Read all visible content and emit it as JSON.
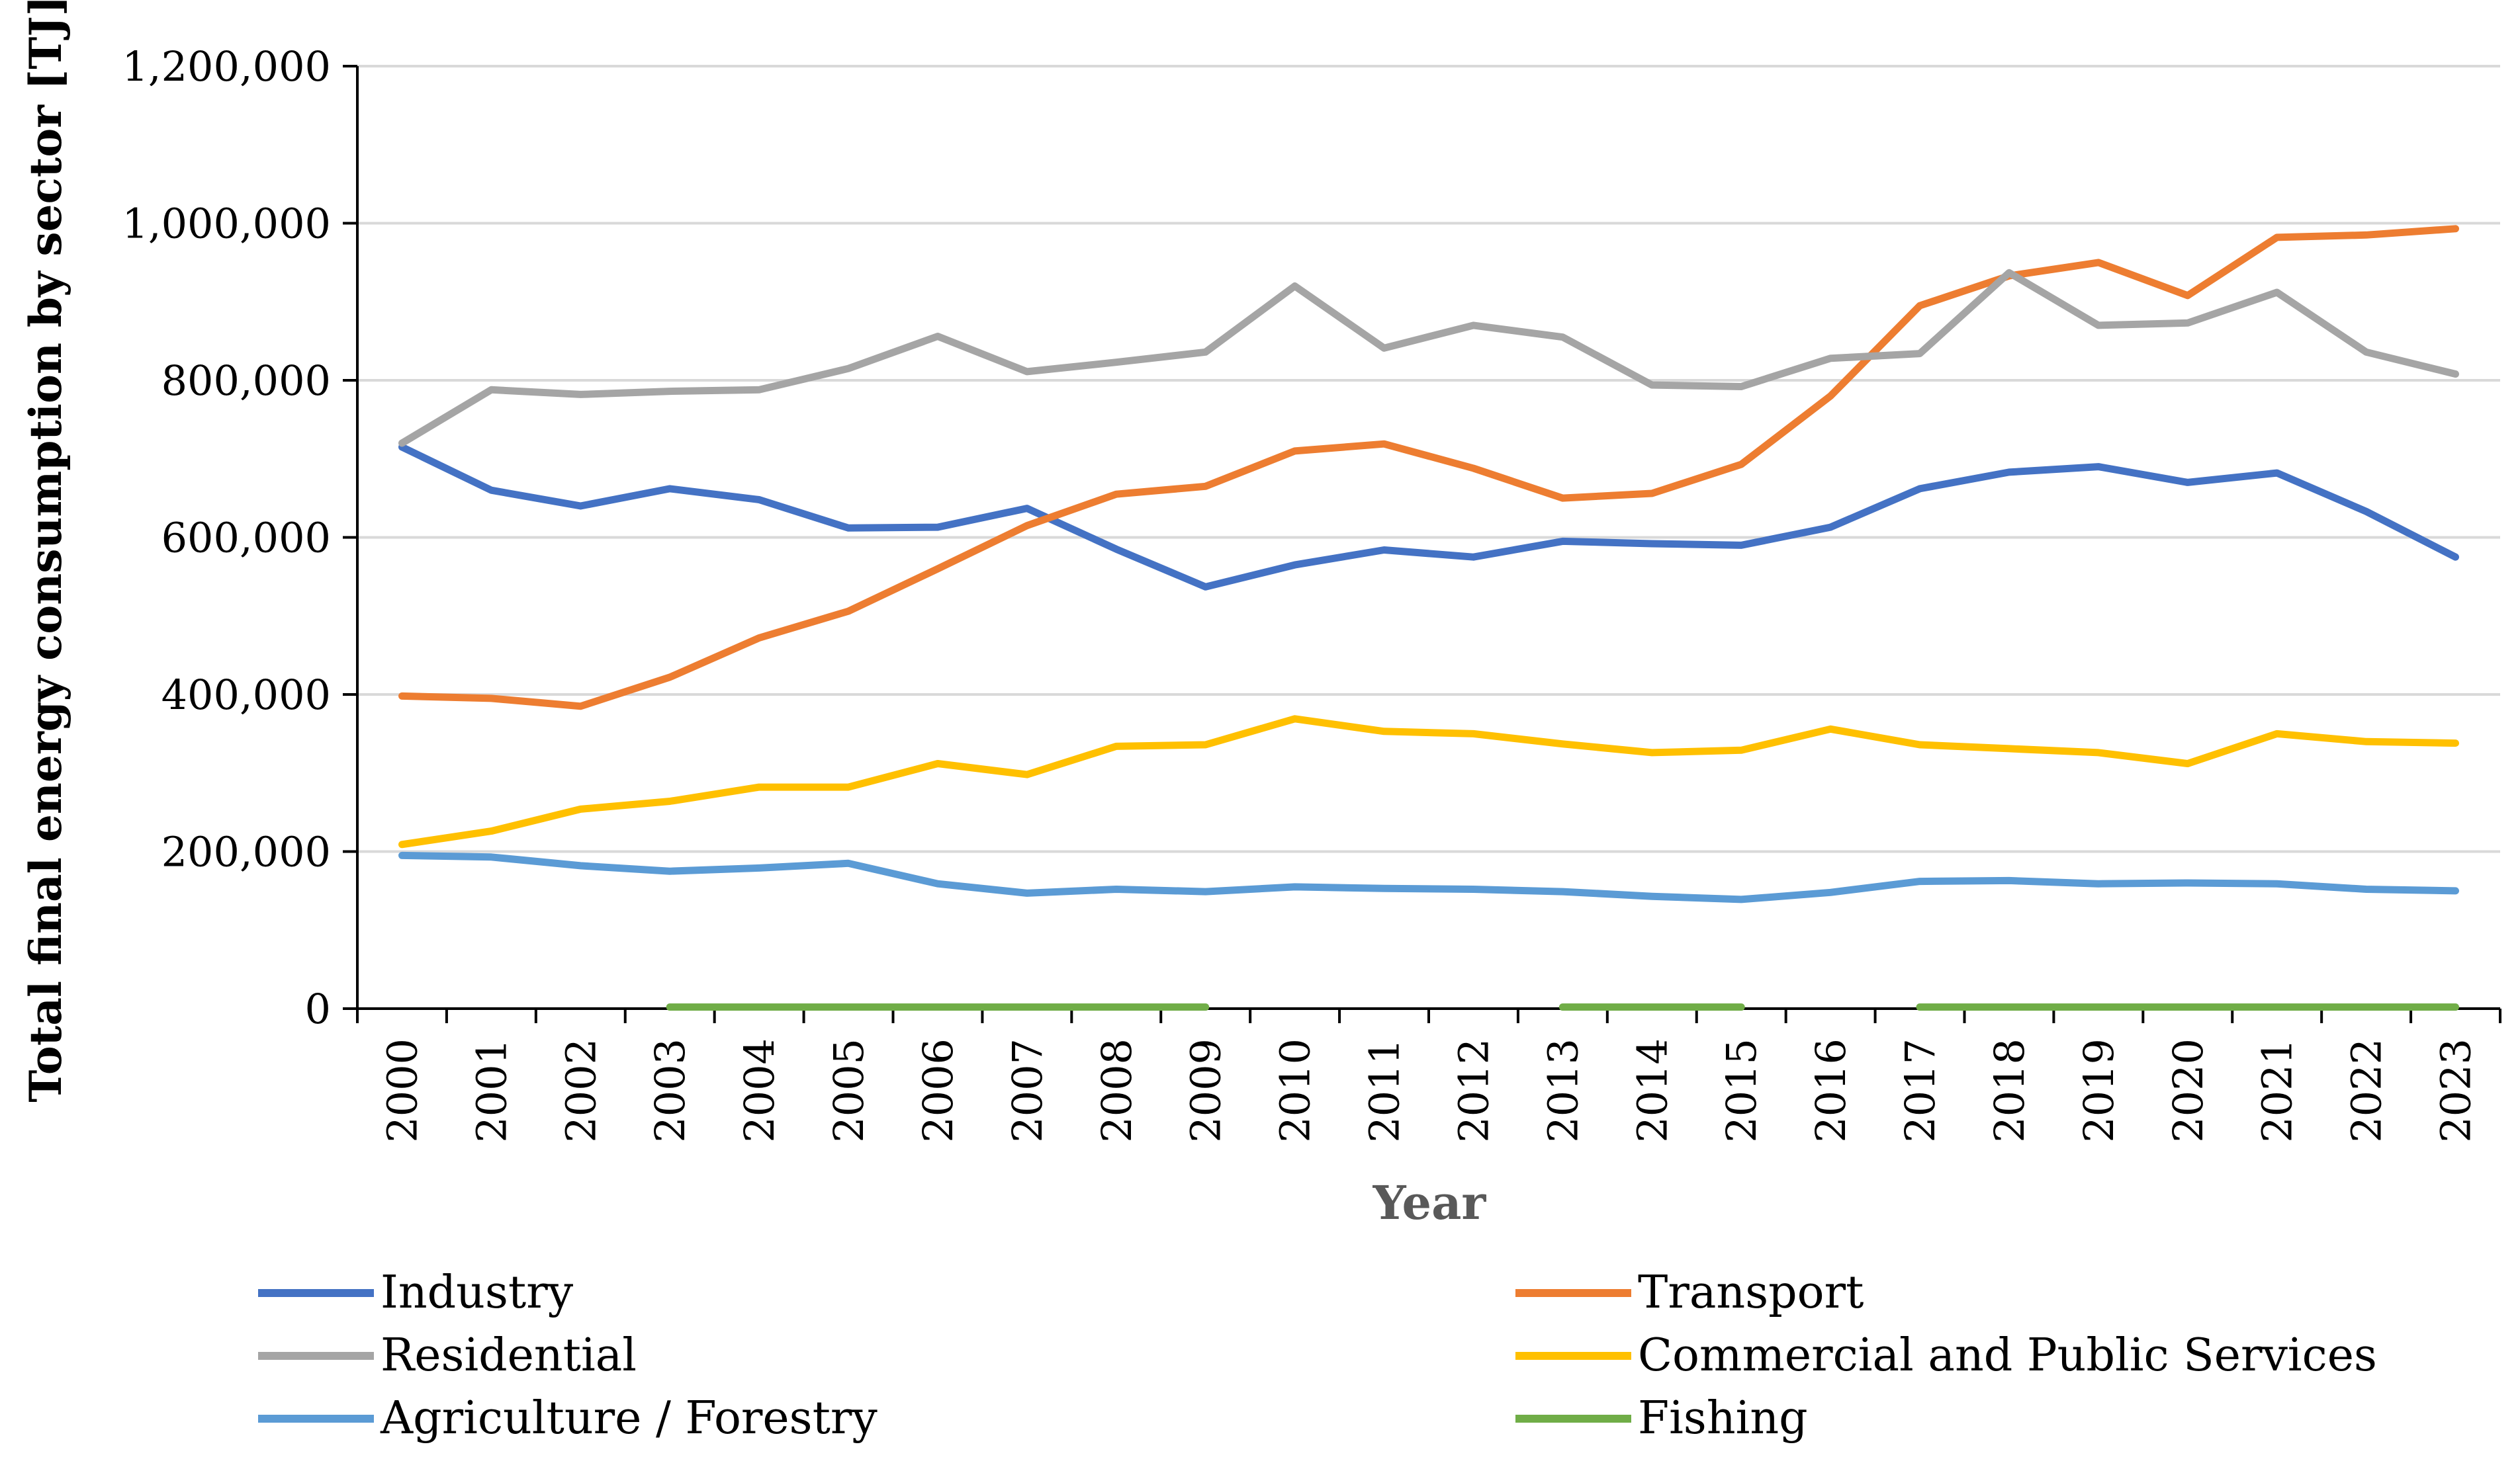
{
  "chart_data": {
    "type": "line",
    "title": "",
    "xlabel": "Year",
    "ylabel": "Total final energy consumption by sector [TJ]",
    "ylim": [
      0,
      1200000
    ],
    "yticks": [
      0,
      200000,
      400000,
      600000,
      800000,
      1000000,
      1200000
    ],
    "ytick_labels": [
      "0",
      "200,000",
      "400,000",
      "600,000",
      "800,000",
      "1,000,000",
      "1,200,000"
    ],
    "grid": true,
    "legend_position": "bottom",
    "categories": [
      "2000",
      "2001",
      "2002",
      "2003",
      "2004",
      "2005",
      "2006",
      "2007",
      "2008",
      "2009",
      "2010",
      "2011",
      "2012",
      "2013",
      "2014",
      "2015",
      "2016",
      "2017",
      "2018",
      "2019",
      "2020",
      "2021",
      "2022",
      "2023"
    ],
    "series": [
      {
        "name": "Industry",
        "color": "#4472c4",
        "values": [
          715000,
          660000,
          640000,
          662000,
          648000,
          612000,
          613000,
          637000,
          585000,
          537000,
          565000,
          584000,
          575000,
          595000,
          592000,
          590000,
          613000,
          662000,
          683000,
          690000,
          670000,
          682000,
          633000,
          575000
        ]
      },
      {
        "name": "Transport",
        "color": "#ed7d31",
        "values": [
          398000,
          395000,
          385000,
          422000,
          472000,
          506000,
          560000,
          615000,
          655000,
          665000,
          710000,
          719000,
          688000,
          650000,
          656000,
          693000,
          780000,
          895000,
          933000,
          950000,
          908000,
          982000,
          985000,
          993000
        ]
      },
      {
        "name": "Residential",
        "color": "#a5a5a5",
        "values": [
          720000,
          788000,
          782000,
          786000,
          788000,
          815000,
          856000,
          811000,
          823000,
          836000,
          920000,
          841000,
          870000,
          855000,
          794000,
          792000,
          828000,
          834000,
          937000,
          870000,
          873000,
          912000,
          836000,
          808000
        ]
      },
      {
        "name": "Commercial and Public Services",
        "color": "#ffc000",
        "values": [
          209000,
          226000,
          254000,
          264000,
          282000,
          282000,
          312000,
          298000,
          334000,
          336000,
          369000,
          353000,
          350000,
          337000,
          326000,
          329000,
          356000,
          336000,
          331000,
          326000,
          312000,
          350000,
          340000,
          338000
        ]
      },
      {
        "name": "Agriculture / Forestry",
        "color": "#5b9bd5",
        "values": [
          195000,
          193000,
          182000,
          175000,
          179000,
          185000,
          159000,
          147000,
          152000,
          149000,
          155000,
          153000,
          152000,
          149000,
          143000,
          139000,
          148000,
          162000,
          163000,
          159000,
          160000,
          159000,
          152000,
          150000
        ]
      },
      {
        "name": "Fishing",
        "color": "#70ad47",
        "values": [
          null,
          null,
          null,
          2000,
          2000,
          2000,
          2000,
          2000,
          2000,
          2000,
          null,
          null,
          null,
          2000,
          2000,
          2000,
          null,
          2000,
          2000,
          2000,
          2000,
          2000,
          2000,
          2000
        ]
      }
    ]
  }
}
